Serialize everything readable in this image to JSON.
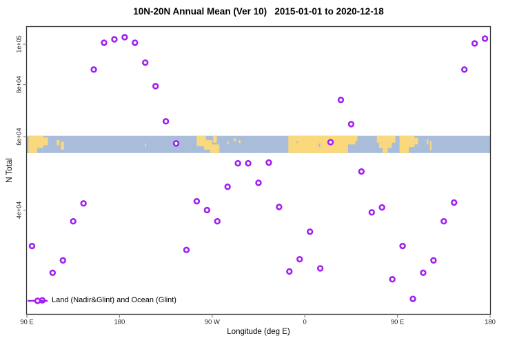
{
  "title": "10N-20N Annual Mean (Ver 10)   2015-01-01 to 2020-12-18",
  "colors": {
    "marker": "#A020F0",
    "marker_fill": "#ffffff",
    "ocean": "#A9BDDB",
    "land": "#FAD87C",
    "axis": "#333333",
    "tick": "#8a8a8a",
    "tick_label": "#222222"
  },
  "legend": {
    "label": "Land (Nadir&Glint) and Ocean (Glint)",
    "marker": "open-circle-on-line",
    "color": "#A020F0",
    "position": "bottom-left"
  },
  "chart_data": {
    "type": "scatter",
    "title": "10N-20N Annual Mean (Ver 10)   2015-01-01 to 2020-12-18",
    "xlabel": "Longitude (deg E)",
    "ylabel": "N Total",
    "x_scale": "linear",
    "y_scale": "log",
    "xlim": [
      90,
      540
    ],
    "ylim": [
      22500,
      110200
    ],
    "grid": false,
    "x_ticks": {
      "values": [
        90,
        180,
        270,
        360,
        450,
        540
      ],
      "labels": [
        "90 E",
        "180",
        "90 W",
        "0",
        "90 E",
        "180"
      ]
    },
    "y_ticks": {
      "values": [
        100000,
        80000,
        60000,
        40000
      ],
      "labels": [
        "1e+05",
        "8e+04",
        "6e+04",
        "4e+04"
      ]
    },
    "points_lon_n": [
      [
        95,
        32800
      ],
      [
        105,
        24300
      ],
      [
        115,
        28300
      ],
      [
        125,
        30300
      ],
      [
        135,
        37600
      ],
      [
        145,
        41500
      ],
      [
        155,
        86900
      ],
      [
        165,
        100800
      ],
      [
        175,
        102700
      ],
      [
        185,
        103900
      ],
      [
        195,
        100800
      ],
      [
        205,
        90300
      ],
      [
        215,
        79300
      ],
      [
        225,
        65300
      ],
      [
        235,
        57800
      ],
      [
        245,
        32100
      ],
      [
        255,
        42000
      ],
      [
        265,
        40000
      ],
      [
        275,
        37600
      ],
      [
        285,
        45500
      ],
      [
        295,
        51800
      ],
      [
        305,
        51800
      ],
      [
        315,
        46500
      ],
      [
        325,
        52000
      ],
      [
        335,
        40700
      ],
      [
        345,
        28500
      ],
      [
        355,
        30500
      ],
      [
        365,
        35500
      ],
      [
        375,
        29000
      ],
      [
        385,
        58200
      ],
      [
        395,
        73500
      ],
      [
        405,
        64300
      ],
      [
        415,
        49500
      ],
      [
        425,
        39500
      ],
      [
        435,
        40600
      ],
      [
        445,
        27300
      ],
      [
        455,
        32800
      ],
      [
        465,
        24500
      ],
      [
        475,
        28300
      ],
      [
        485,
        30300
      ],
      [
        495,
        37600
      ],
      [
        505,
        41700
      ],
      [
        515,
        86900
      ],
      [
        525,
        100400
      ],
      [
        535,
        103100
      ]
    ],
    "map_band": {
      "description": "10N-20N world land/ocean strip",
      "value_top": 60300,
      "value_bottom": 54800,
      "land_segments_lon_topfrac_botfrac": [
        [
          91.5,
          100,
          0,
          1
        ],
        [
          100,
          106,
          0,
          0.7
        ],
        [
          106,
          110.5,
          0.1,
          0.55
        ],
        [
          119,
          121.5,
          0.25,
          0.55
        ],
        [
          123,
          126,
          0.35,
          0.8
        ],
        [
          204.5,
          205.8,
          0.45,
          0.62
        ],
        [
          255,
          264,
          0,
          0.6
        ],
        [
          262,
          270,
          0.25,
          0.8
        ],
        [
          268,
          277,
          0.5,
          1
        ],
        [
          271,
          274.5,
          0,
          0.4
        ],
        [
          284.5,
          286,
          0.3,
          0.48
        ],
        [
          291,
          293,
          0.15,
          0.32
        ],
        [
          296,
          297.5,
          0.25,
          0.42
        ],
        [
          344,
          402,
          0,
          1
        ],
        [
          402,
          409,
          0,
          0.5
        ],
        [
          406,
          411,
          0,
          0.3
        ],
        [
          430,
          448,
          0,
          0.4
        ],
        [
          432,
          444.5,
          0.4,
          0.7
        ],
        [
          435.5,
          440.5,
          0.7,
          1
        ],
        [
          452,
          461,
          0,
          1
        ],
        [
          461,
          466.5,
          0,
          0.65
        ],
        [
          466.5,
          470,
          0.12,
          0.5
        ],
        [
          478.5,
          480,
          0.2,
          0.5
        ],
        [
          481.5,
          483,
          0.3,
          0.85
        ]
      ],
      "lake_segments_lon_topfrac_botfrac": [
        [
          373.5,
          375,
          0.45,
          0.65
        ],
        [
          352,
          353,
          0.3,
          0.45
        ]
      ]
    },
    "legend": {
      "label": "Land (Nadir&Glint) and Ocean (Glint)"
    }
  }
}
